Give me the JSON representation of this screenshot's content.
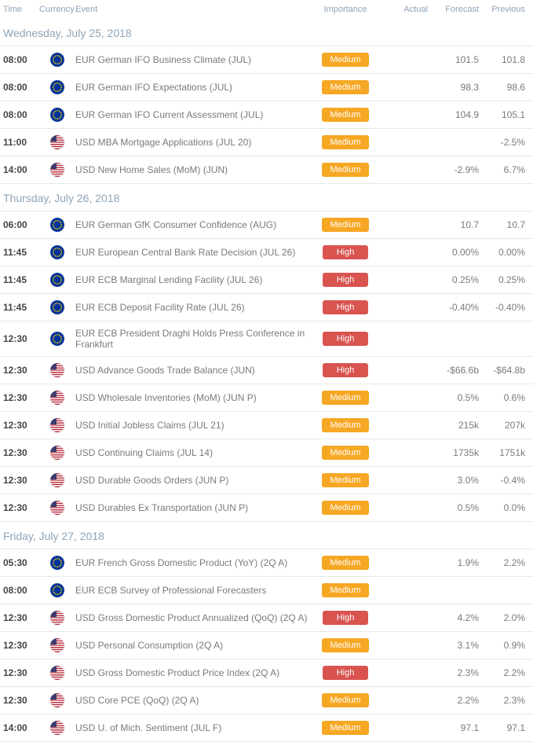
{
  "colors": {
    "header_text": "#8fa4b8",
    "row_border": "#e8e8e8",
    "badge_medium": "#f6a723",
    "badge_high": "#d9534f",
    "time_text": "#444444",
    "event_text": "#7a7a7a"
  },
  "header": {
    "time": "Time",
    "currency": "Currency",
    "event": "Event",
    "importance": "Importance",
    "actual": "Actual",
    "forecast": "Forecast",
    "previous": "Previous"
  },
  "flags": {
    "EUR": {
      "type": "eu"
    },
    "USD": {
      "type": "us"
    }
  },
  "days": [
    {
      "label": "Wednesday, July 25, 2018",
      "rows": [
        {
          "time": "08:00",
          "flag": "EUR",
          "event": "EUR German IFO Business Climate (JUL)",
          "importance": "Medium",
          "actual": "",
          "forecast": "101.5",
          "previous": "101.8"
        },
        {
          "time": "08:00",
          "flag": "EUR",
          "event": "EUR German IFO Expectations (JUL)",
          "importance": "Medium",
          "actual": "",
          "forecast": "98.3",
          "previous": "98.6"
        },
        {
          "time": "08:00",
          "flag": "EUR",
          "event": "EUR German IFO Current Assessment (JUL)",
          "importance": "Medium",
          "actual": "",
          "forecast": "104.9",
          "previous": "105.1"
        },
        {
          "time": "11:00",
          "flag": "USD",
          "event": "USD MBA Mortgage Applications (JUL 20)",
          "importance": "Medium",
          "actual": "",
          "forecast": "",
          "previous": "-2.5%"
        },
        {
          "time": "14:00",
          "flag": "USD",
          "event": "USD New Home Sales (MoM) (JUN)",
          "importance": "Medium",
          "actual": "",
          "forecast": "-2.9%",
          "previous": "6.7%"
        }
      ]
    },
    {
      "label": "Thursday, July 26, 2018",
      "rows": [
        {
          "time": "06:00",
          "flag": "EUR",
          "event": "EUR German GfK Consumer Confidence (AUG)",
          "importance": "Medium",
          "actual": "",
          "forecast": "10.7",
          "previous": "10.7"
        },
        {
          "time": "11:45",
          "flag": "EUR",
          "event": "EUR European Central Bank Rate Decision (JUL 26)",
          "importance": "High",
          "actual": "",
          "forecast": "0.00%",
          "previous": "0.00%"
        },
        {
          "time": "11:45",
          "flag": "EUR",
          "event": "EUR ECB Marginal Lending Facility (JUL 26)",
          "importance": "High",
          "actual": "",
          "forecast": "0.25%",
          "previous": "0.25%"
        },
        {
          "time": "11:45",
          "flag": "EUR",
          "event": "EUR ECB Deposit Facility Rate (JUL 26)",
          "importance": "High",
          "actual": "",
          "forecast": "-0.40%",
          "previous": "-0.40%"
        },
        {
          "time": "12:30",
          "flag": "EUR",
          "event": "EUR ECB President Draghi Holds Press Conference in Frankfurt",
          "importance": "High",
          "actual": "",
          "forecast": "",
          "previous": ""
        },
        {
          "time": "12:30",
          "flag": "USD",
          "event": "USD Advance Goods Trade Balance (JUN)",
          "importance": "High",
          "actual": "",
          "forecast": "-$66.6b",
          "previous": "-$64.8b"
        },
        {
          "time": "12:30",
          "flag": "USD",
          "event": "USD Wholesale Inventories (MoM) (JUN P)",
          "importance": "Medium",
          "actual": "",
          "forecast": "0.5%",
          "previous": "0.6%"
        },
        {
          "time": "12:30",
          "flag": "USD",
          "event": "USD Initial Jobless Claims (JUL 21)",
          "importance": "Medium",
          "actual": "",
          "forecast": "215k",
          "previous": "207k"
        },
        {
          "time": "12:30",
          "flag": "USD",
          "event": "USD Continuing Claims (JUL 14)",
          "importance": "Medium",
          "actual": "",
          "forecast": "1735k",
          "previous": "1751k"
        },
        {
          "time": "12:30",
          "flag": "USD",
          "event": "USD Durable Goods Orders (JUN P)",
          "importance": "Medium",
          "actual": "",
          "forecast": "3.0%",
          "previous": "-0.4%"
        },
        {
          "time": "12:30",
          "flag": "USD",
          "event": "USD Durables Ex Transportation (JUN P)",
          "importance": "Medium",
          "actual": "",
          "forecast": "0.5%",
          "previous": "0.0%"
        }
      ]
    },
    {
      "label": "Friday, July 27, 2018",
      "rows": [
        {
          "time": "05:30",
          "flag": "EUR",
          "event": "EUR French Gross Domestic Product (YoY) (2Q A)",
          "importance": "Medium",
          "actual": "",
          "forecast": "1.9%",
          "previous": "2.2%"
        },
        {
          "time": "08:00",
          "flag": "EUR",
          "event": "EUR ECB Survey of Professional Forecasters",
          "importance": "Medium",
          "actual": "",
          "forecast": "",
          "previous": ""
        },
        {
          "time": "12:30",
          "flag": "USD",
          "event": "USD Gross Domestic Product Annualized (QoQ) (2Q A)",
          "importance": "High",
          "actual": "",
          "forecast": "4.2%",
          "previous": "2.0%"
        },
        {
          "time": "12:30",
          "flag": "USD",
          "event": "USD Personal Consumption (2Q A)",
          "importance": "Medium",
          "actual": "",
          "forecast": "3.1%",
          "previous": "0.9%"
        },
        {
          "time": "12:30",
          "flag": "USD",
          "event": "USD Gross Domestic Product Price Index (2Q A)",
          "importance": "High",
          "actual": "",
          "forecast": "2.3%",
          "previous": "2.2%"
        },
        {
          "time": "12:30",
          "flag": "USD",
          "event": "USD Core PCE (QoQ) (2Q A)",
          "importance": "Medium",
          "actual": "",
          "forecast": "2.2%",
          "previous": "2.3%"
        },
        {
          "time": "14:00",
          "flag": "USD",
          "event": "USD U. of Mich. Sentiment (JUL F)",
          "importance": "Medium",
          "actual": "",
          "forecast": "97.1",
          "previous": "97.1"
        }
      ]
    }
  ]
}
